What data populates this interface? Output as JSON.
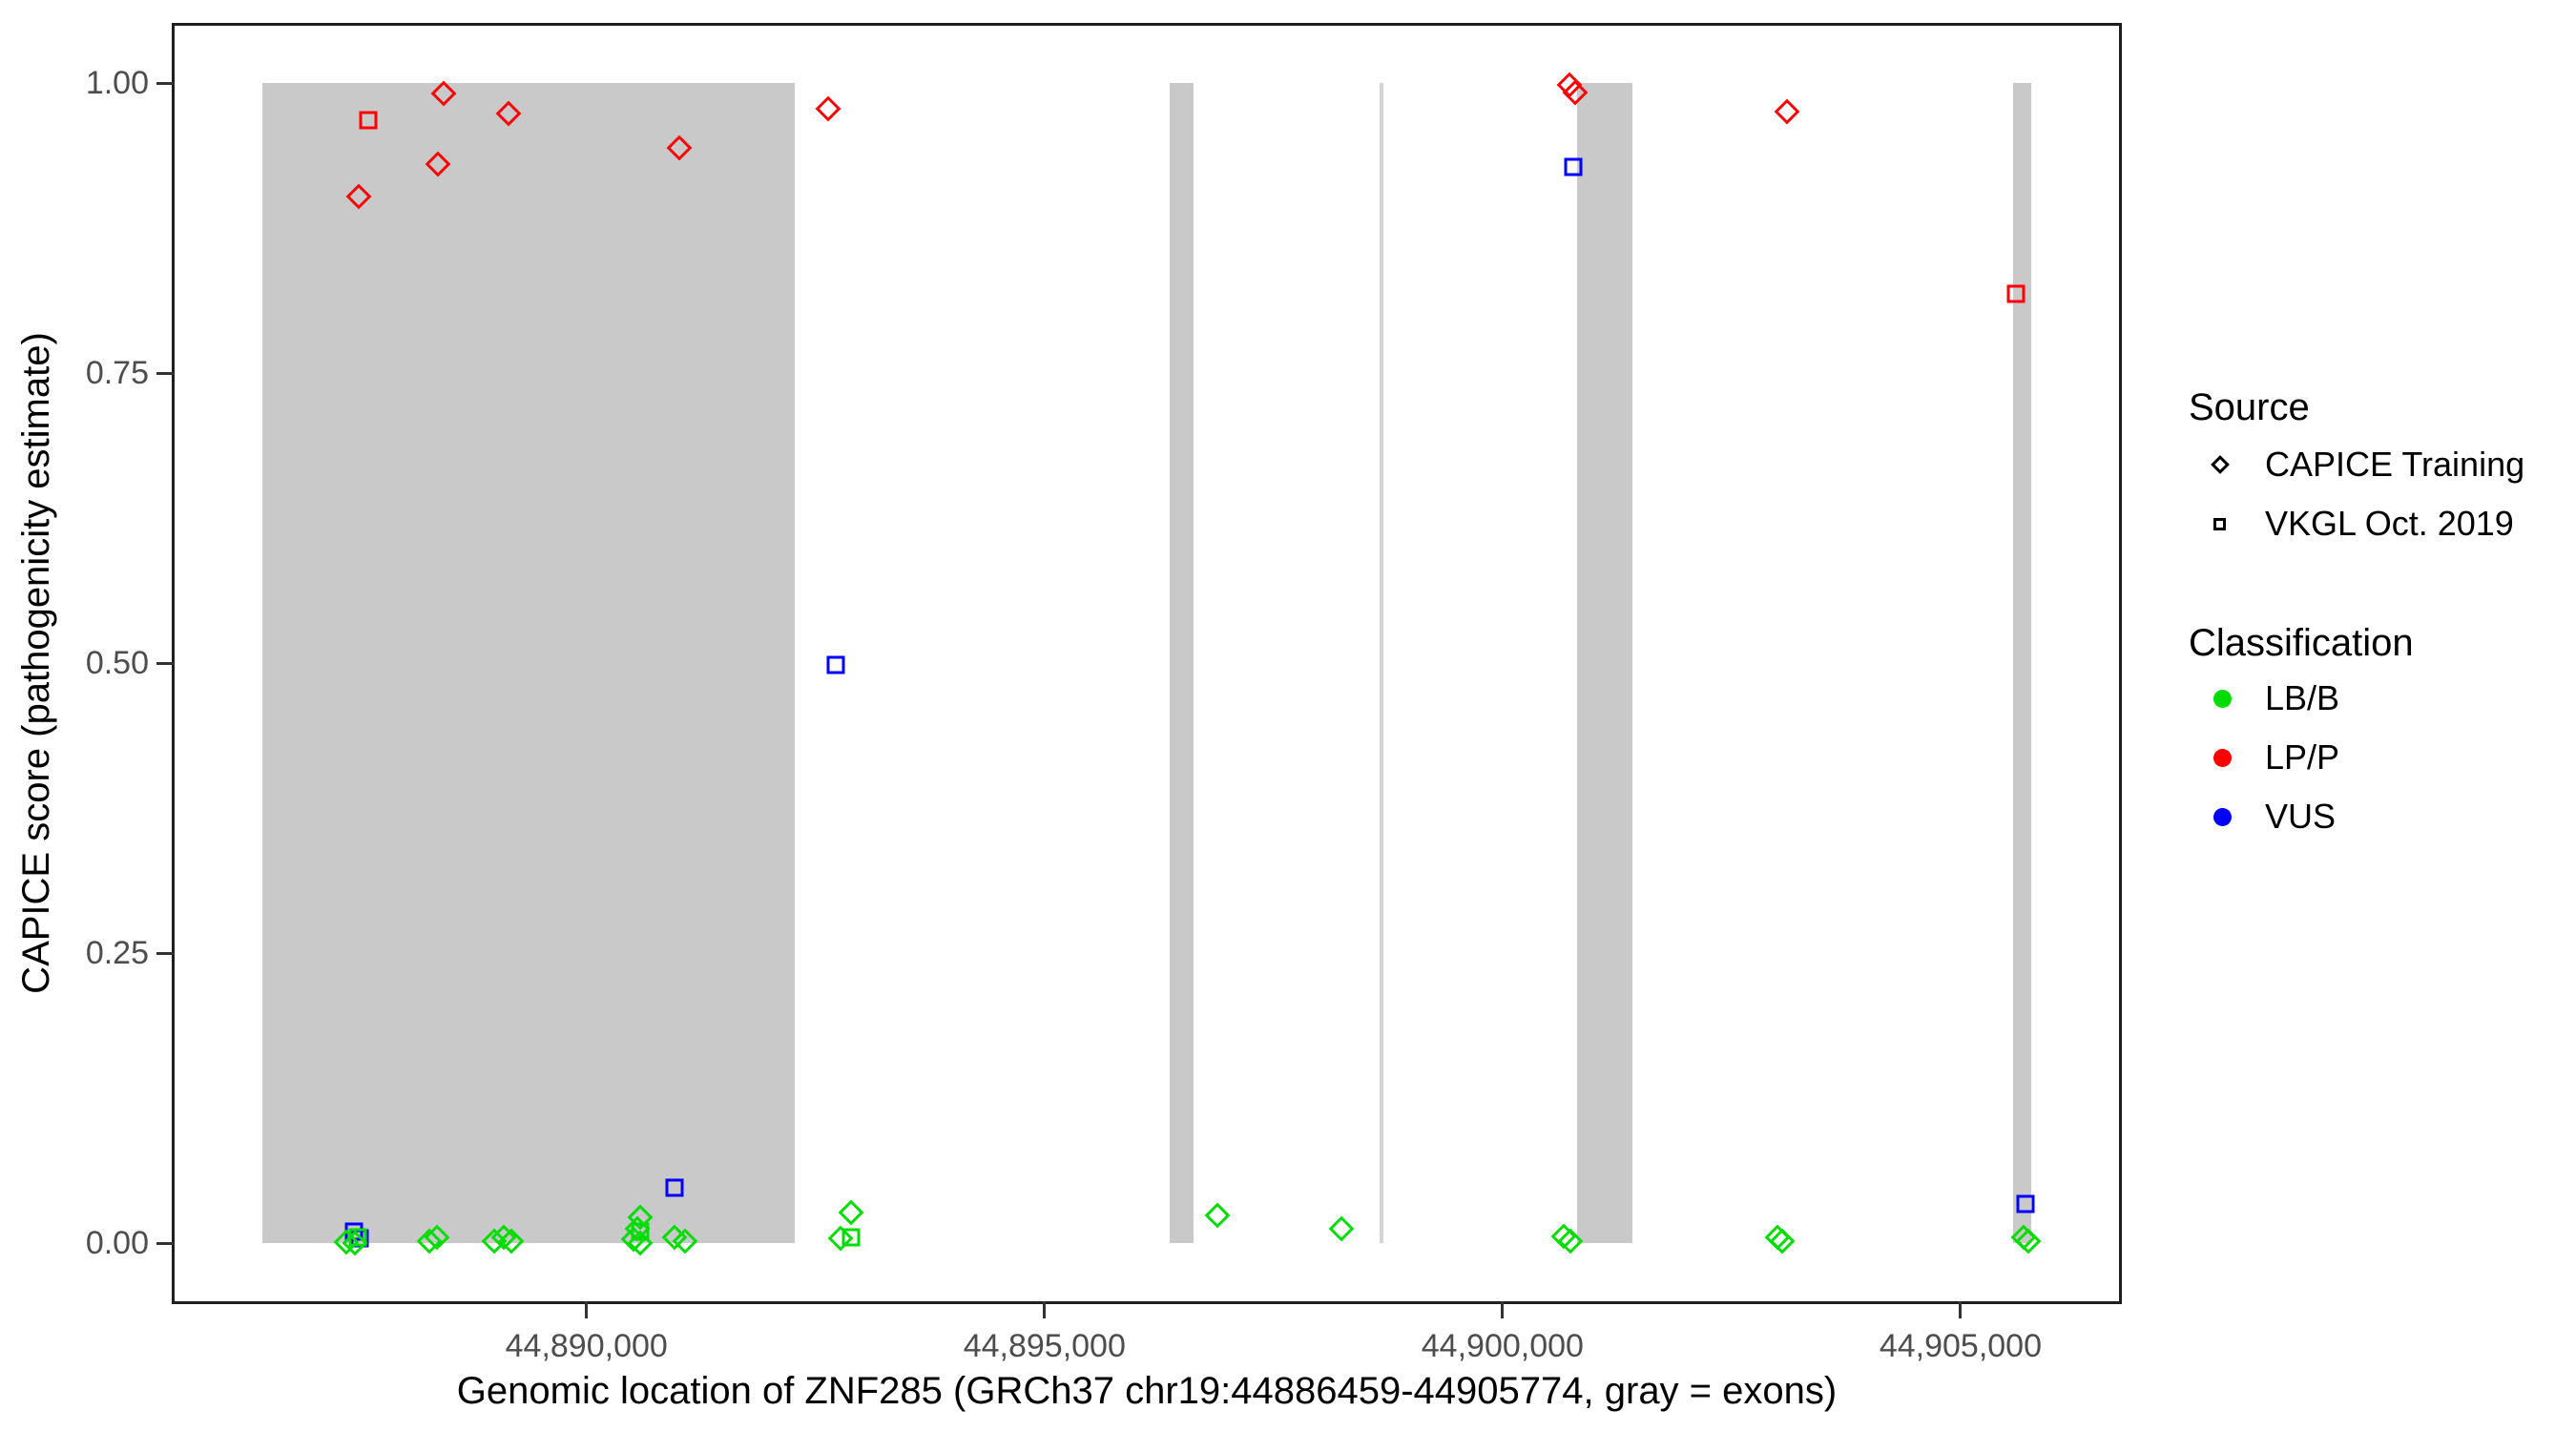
{
  "axes": {
    "x": {
      "title": "Genomic location of ZNF285 (GRCh37 chr19:44886459-44905774, gray = exons)",
      "range_bp": [
        44885493,
        44906740
      ],
      "ticks": [
        {
          "value": 44890000,
          "label": "44,890,000"
        },
        {
          "value": 44895000,
          "label": "44,895,000"
        },
        {
          "value": 44900000,
          "label": "44,900,000"
        },
        {
          "value": 44905000,
          "label": "44,905,000"
        }
      ]
    },
    "y": {
      "title": "CAPICE score (pathogenicity estimate)",
      "range": [
        -0.05,
        1.05
      ],
      "ticks": [
        {
          "value": 1.0,
          "label": "1.00"
        },
        {
          "value": 0.75,
          "label": "0.75"
        },
        {
          "value": 0.5,
          "label": "0.50"
        },
        {
          "value": 0.25,
          "label": "0.25"
        },
        {
          "value": 0.0,
          "label": "0.00"
        }
      ]
    }
  },
  "legend": {
    "source": {
      "title": "Source",
      "items": [
        {
          "label": "CAPICE Training",
          "shape": "diamond"
        },
        {
          "label": "VKGL Oct. 2019",
          "shape": "square"
        }
      ]
    },
    "classification": {
      "title": "Classification",
      "items": [
        {
          "label": "LB/B",
          "class": "LB/B"
        },
        {
          "label": "LP/P",
          "class": "LP/P"
        },
        {
          "label": "VUS",
          "class": "VUS"
        }
      ]
    }
  },
  "colors": {
    "LB/B": "#00DC00",
    "LP/P": "#FF0000",
    "VUS": "#0000FF",
    "exon": "#C9C9C9",
    "exon_thin": "#D4D4D4"
  },
  "chart_data": {
    "type": "scatter",
    "xlabel": "Genomic location of ZNF285 (GRCh37 chr19:44886459-44905774, gray = exons)",
    "ylabel": "CAPICE score (pathogenicity estimate)",
    "x_unit": "genomic position (bp, GRCh37 chr19)",
    "gene_region_bp": [
      44886459,
      44905774
    ],
    "xlim_bp": [
      44885493,
      44906740
    ],
    "ylim": [
      -0.05,
      1.05
    ],
    "grid": false,
    "legend_position": "right",
    "shape_by_source": {
      "CAPICE Training": "diamond",
      "VKGL Oct. 2019": "square"
    },
    "exons_bp": [
      [
        44886459,
        44892270
      ],
      [
        44896367,
        44896628
      ],
      [
        44898655,
        44898700
      ],
      [
        44900810,
        44901413
      ],
      [
        44905570,
        44905774
      ]
    ],
    "points": [
      {
        "bp": 44888438,
        "score": 0.991,
        "source": "CAPICE Training",
        "classification": "LP/P"
      },
      {
        "bp": 44889145,
        "score": 0.974,
        "source": "CAPICE Training",
        "classification": "LP/P"
      },
      {
        "bp": 44888375,
        "score": 0.93,
        "source": "CAPICE Training",
        "classification": "LP/P"
      },
      {
        "bp": 44887512,
        "score": 0.902,
        "source": "CAPICE Training",
        "classification": "LP/P"
      },
      {
        "bp": 44891008,
        "score": 0.944,
        "source": "CAPICE Training",
        "classification": "LP/P"
      },
      {
        "bp": 44892642,
        "score": 0.978,
        "source": "CAPICE Training",
        "classification": "LP/P"
      },
      {
        "bp": 44900727,
        "score": 0.998,
        "source": "CAPICE Training",
        "classification": "LP/P"
      },
      {
        "bp": 44900789,
        "score": 0.992,
        "source": "CAPICE Training",
        "classification": "LP/P"
      },
      {
        "bp": 44903100,
        "score": 0.975,
        "source": "CAPICE Training",
        "classification": "LP/P"
      },
      {
        "bp": 44887616,
        "score": 0.968,
        "source": "VKGL Oct. 2019",
        "classification": "LP/P"
      },
      {
        "bp": 44905607,
        "score": 0.818,
        "source": "VKGL Oct. 2019",
        "classification": "LP/P"
      },
      {
        "bp": 44887460,
        "score": 0.01,
        "source": "VKGL Oct. 2019",
        "classification": "VUS"
      },
      {
        "bp": 44887522,
        "score": 0.004,
        "source": "VKGL Oct. 2019",
        "classification": "VUS"
      },
      {
        "bp": 44890956,
        "score": 0.048,
        "source": "VKGL Oct. 2019",
        "classification": "VUS"
      },
      {
        "bp": 44892725,
        "score": 0.498,
        "source": "VKGL Oct. 2019",
        "classification": "VUS"
      },
      {
        "bp": 44900768,
        "score": 0.928,
        "source": "VKGL Oct. 2019",
        "classification": "VUS"
      },
      {
        "bp": 44905711,
        "score": 0.034,
        "source": "VKGL Oct. 2019",
        "classification": "VUS"
      },
      {
        "bp": 44887501,
        "score": 0.005,
        "source": "VKGL Oct. 2019",
        "classification": "LB/B"
      },
      {
        "bp": 44890582,
        "score": 0.01,
        "source": "VKGL Oct. 2019",
        "classification": "LB/B"
      },
      {
        "bp": 44892892,
        "score": 0.005,
        "source": "VKGL Oct. 2019",
        "classification": "LB/B"
      },
      {
        "bp": 44887376,
        "score": 0.001,
        "source": "CAPICE Training",
        "classification": "LB/B"
      },
      {
        "bp": 44887470,
        "score": 0.0,
        "source": "CAPICE Training",
        "classification": "LB/B"
      },
      {
        "bp": 44888282,
        "score": 0.002,
        "source": "CAPICE Training",
        "classification": "LB/B"
      },
      {
        "bp": 44888365,
        "score": 0.005,
        "source": "CAPICE Training",
        "classification": "LB/B"
      },
      {
        "bp": 44888989,
        "score": 0.002,
        "source": "CAPICE Training",
        "classification": "LB/B"
      },
      {
        "bp": 44889093,
        "score": 0.005,
        "source": "CAPICE Training",
        "classification": "LB/B"
      },
      {
        "bp": 44889177,
        "score": 0.002,
        "source": "CAPICE Training",
        "classification": "LB/B"
      },
      {
        "bp": 44890582,
        "score": 0.022,
        "source": "CAPICE Training",
        "classification": "LB/B"
      },
      {
        "bp": 44890550,
        "score": 0.012,
        "source": "CAPICE Training",
        "classification": "LB/B"
      },
      {
        "bp": 44890509,
        "score": 0.003,
        "source": "CAPICE Training",
        "classification": "LB/B"
      },
      {
        "bp": 44890582,
        "score": 0.0,
        "source": "CAPICE Training",
        "classification": "LB/B"
      },
      {
        "bp": 44890956,
        "score": 0.005,
        "source": "CAPICE Training",
        "classification": "LB/B"
      },
      {
        "bp": 44891071,
        "score": 0.002,
        "source": "CAPICE Training",
        "classification": "LB/B"
      },
      {
        "bp": 44892777,
        "score": 0.004,
        "source": "CAPICE Training",
        "classification": "LB/B"
      },
      {
        "bp": 44892892,
        "score": 0.026,
        "source": "CAPICE Training",
        "classification": "LB/B"
      },
      {
        "bp": 44896890,
        "score": 0.024,
        "source": "CAPICE Training",
        "classification": "LB/B"
      },
      {
        "bp": 44898240,
        "score": 0.012,
        "source": "CAPICE Training",
        "classification": "LB/B"
      },
      {
        "bp": 44900665,
        "score": 0.006,
        "source": "CAPICE Training",
        "classification": "LB/B"
      },
      {
        "bp": 44900737,
        "score": 0.002,
        "source": "CAPICE Training",
        "classification": "LB/B"
      },
      {
        "bp": 44903006,
        "score": 0.005,
        "source": "CAPICE Training",
        "classification": "LB/B"
      },
      {
        "bp": 44903058,
        "score": 0.002,
        "source": "CAPICE Training",
        "classification": "LB/B"
      },
      {
        "bp": 44905691,
        "score": 0.005,
        "source": "CAPICE Training",
        "classification": "LB/B"
      },
      {
        "bp": 44905743,
        "score": 0.002,
        "source": "CAPICE Training",
        "classification": "LB/B"
      }
    ]
  }
}
